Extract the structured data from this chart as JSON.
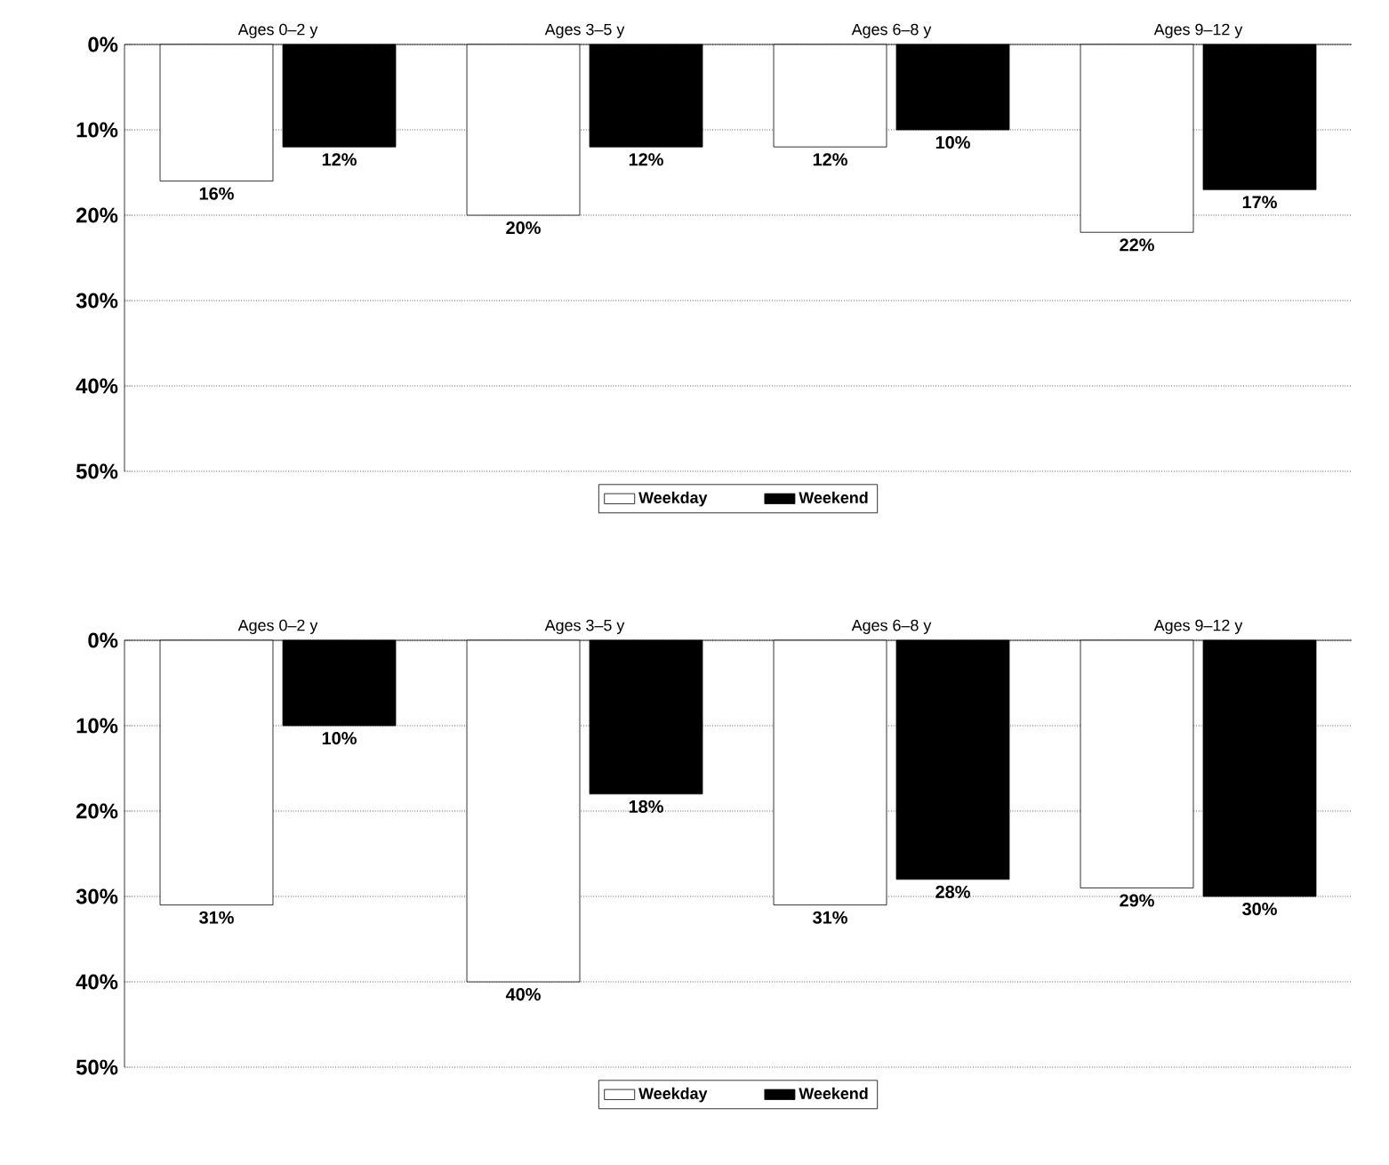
{
  "chart_data": [
    {
      "type": "bar",
      "categories": [
        "Ages 0–2 y",
        "Ages 3–5 y",
        "Ages 6–8 y",
        "Ages 9–12 y"
      ],
      "series": [
        {
          "name": "Weekday",
          "color": "#ffffff",
          "values": [
            16,
            20,
            12,
            22
          ],
          "value_labels": [
            "16%",
            "20%",
            "12%",
            "22%"
          ]
        },
        {
          "name": "Weekend",
          "color": "#000000",
          "values": [
            12,
            12,
            10,
            17
          ],
          "value_labels": [
            "12%",
            "12%",
            "10%",
            "17%"
          ]
        }
      ],
      "ylim": [
        50,
        0
      ],
      "yticks": [
        {
          "value": 0,
          "label": "0%"
        },
        {
          "value": 10,
          "label": "10%"
        },
        {
          "value": 20,
          "label": "20%"
        },
        {
          "value": 30,
          "label": "30%"
        },
        {
          "value": 40,
          "label": "40%"
        },
        {
          "value": 50,
          "label": "50%"
        }
      ],
      "grid": "y",
      "legend": "bottom"
    },
    {
      "type": "bar",
      "categories": [
        "Ages 0–2 y",
        "Ages 3–5 y",
        "Ages 6–8 y",
        "Ages 9–12 y"
      ],
      "series": [
        {
          "name": "Weekday",
          "color": "#ffffff",
          "values": [
            31,
            40,
            31,
            29
          ],
          "value_labels": [
            "31%",
            "40%",
            "31%",
            "29%"
          ]
        },
        {
          "name": "Weekend",
          "color": "#000000",
          "values": [
            10,
            18,
            28,
            30
          ],
          "value_labels": [
            "10%",
            "18%",
            "28%",
            "30%"
          ]
        }
      ],
      "ylim": [
        50,
        0
      ],
      "yticks": [
        {
          "value": 0,
          "label": "0%"
        },
        {
          "value": 10,
          "label": "10%"
        },
        {
          "value": 20,
          "label": "20%"
        },
        {
          "value": 30,
          "label": "30%"
        },
        {
          "value": 40,
          "label": "40%"
        },
        {
          "value": 50,
          "label": "50%"
        }
      ],
      "grid": "y",
      "legend": "bottom"
    }
  ]
}
